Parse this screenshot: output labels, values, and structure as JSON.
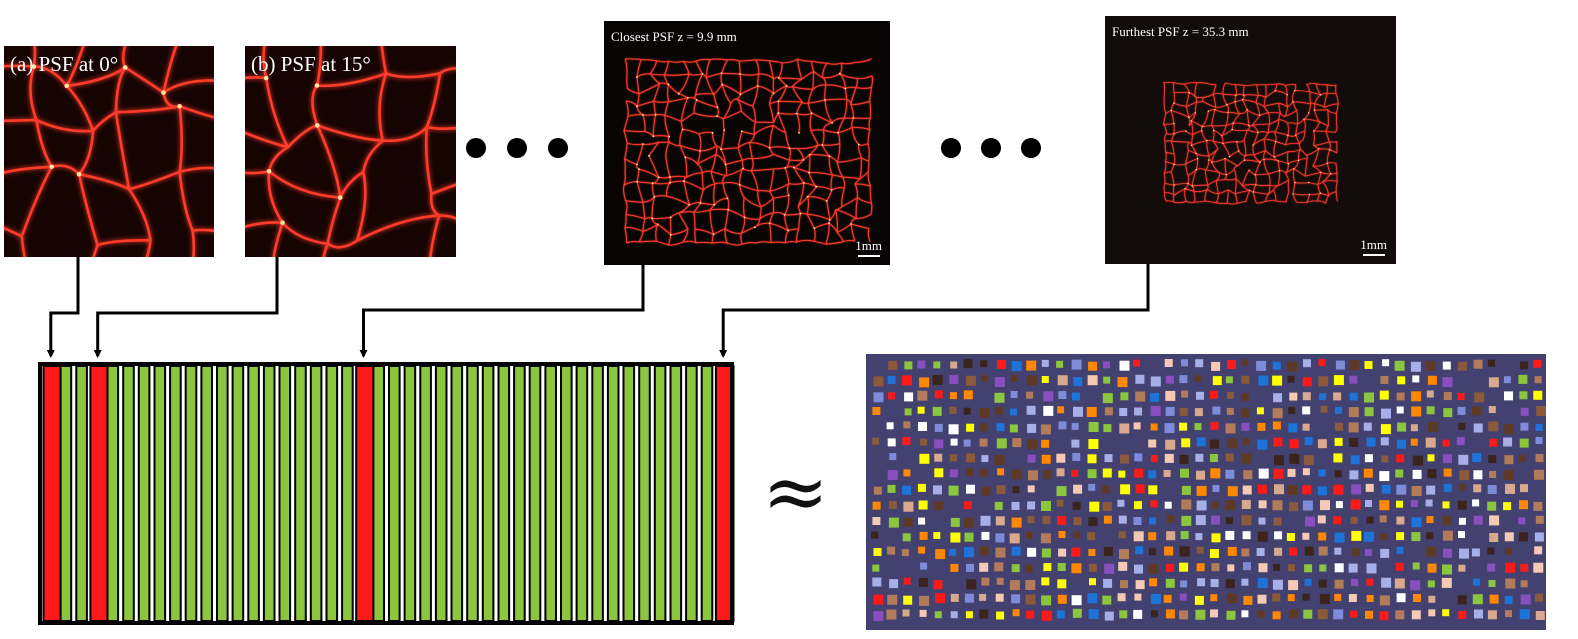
{
  "panels": {
    "psf_0": {
      "label": "(a) PSF at 0°"
    },
    "psf_15": {
      "label": "(b) PSF at 15°"
    },
    "closest": {
      "label": "Closest PSF z = 9.9 mm",
      "scale": "1mm"
    },
    "furthest": {
      "label": "Furthest PSF z = 35.3 mm",
      "scale": "1mm"
    }
  },
  "ellipsis": "• • •",
  "approx_symbol": "≈",
  "stack": {
    "total_slices": 44,
    "highlighted_slices": [
      0,
      3,
      20,
      43
    ]
  },
  "colors": {
    "slice_fill": "#8cc63f",
    "slice_highlight": "#ff1a1a",
    "stack_border": "#000000",
    "psf_glow": "#ff3a2a",
    "panel_bg_dark": "#160402",
    "mosaic_bg": "#434170",
    "mosaic_palette": [
      "#f5c9b3",
      "#d9a98f",
      "#ffffff",
      "#8b5a3c",
      "#5c3a25",
      "#3a241c",
      "#1e73d9",
      "#7d8bd8",
      "#a7afe8",
      "#8a4fbf",
      "#ff1a1a",
      "#ffff00",
      "#8cc63f",
      "#ff8800",
      "#b27c5a"
    ]
  }
}
